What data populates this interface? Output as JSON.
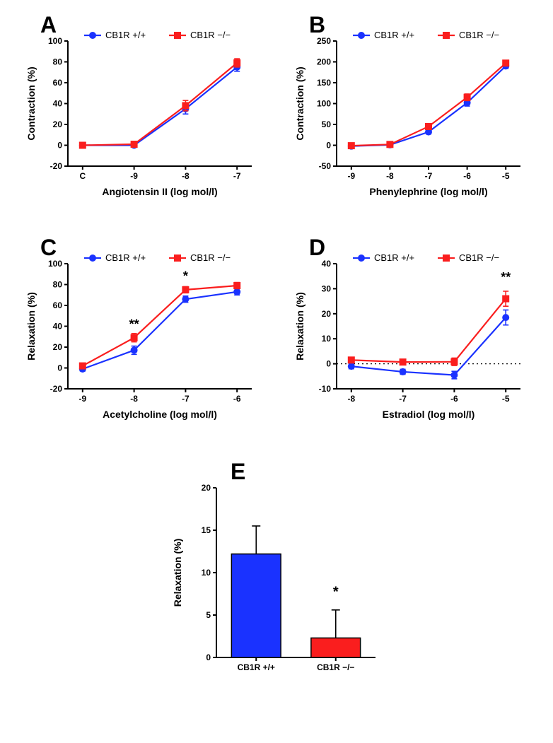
{
  "series_labels": {
    "wt": "CB1R +/+",
    "ko": "CB1R −/−"
  },
  "colors": {
    "wt": "#1a32ff",
    "ko": "#fa1e1e",
    "axis": "#000000",
    "text": "#000000",
    "bg": "#ffffff",
    "dashed": "#000000"
  },
  "marker": {
    "wt": "circle",
    "ko": "square",
    "size": 5,
    "line_width": 2.2,
    "err_cap": 4
  },
  "label_fontsize": 14,
  "tick_fontsize": 12,
  "panel_label_fontsize": 32,
  "legend_fontsize": 13,
  "panelA": {
    "label": "A",
    "xlabel": "Angiotensin II (log mol/l)",
    "ylabel": "Contraction  (%)",
    "x_categories": [
      "C",
      "-9",
      "-8",
      "-7"
    ],
    "ylim": [
      -20,
      100
    ],
    "ytick_step": 20,
    "series": {
      "wt": {
        "y": [
          0,
          0,
          35,
          75
        ],
        "err": [
          0,
          0,
          5,
          4
        ]
      },
      "ko": {
        "y": [
          0,
          1,
          38,
          79
        ],
        "err": [
          0,
          0,
          5,
          4
        ]
      }
    }
  },
  "panelB": {
    "label": "B",
    "xlabel": "Phenylephrine (log mol/l)",
    "ylabel": "Contraction  (%)",
    "x_categories": [
      "-9",
      "-8",
      "-7",
      "-6",
      "-5"
    ],
    "ylim": [
      -50,
      250
    ],
    "ytick_step": 50,
    "series": {
      "wt": {
        "y": [
          -2,
          1,
          32,
          102,
          190
        ],
        "err": [
          0,
          0,
          5,
          8,
          6
        ]
      },
      "ko": {
        "y": [
          -1,
          2,
          45,
          115,
          197
        ],
        "err": [
          0,
          0,
          5,
          8,
          6
        ]
      }
    }
  },
  "panelC": {
    "label": "C",
    "xlabel": "Acetylcholine (log mol/l)",
    "ylabel": "Relaxation  (%)",
    "x_categories": [
      "-9",
      "-8",
      "-7",
      "-6"
    ],
    "ylim": [
      -20,
      100
    ],
    "ytick_step": 20,
    "series": {
      "wt": {
        "y": [
          -1,
          17,
          66,
          73
        ],
        "err": [
          2,
          4,
          3,
          3
        ]
      },
      "ko": {
        "y": [
          2,
          29,
          75,
          79
        ],
        "err": [
          2,
          4,
          3,
          3
        ]
      }
    },
    "annotations": [
      {
        "x_index": 1,
        "y": 38,
        "text": "**"
      },
      {
        "x_index": 2,
        "y": 84,
        "text": "*"
      }
    ]
  },
  "panelD": {
    "label": "D",
    "xlabel": "Estradiol (log mol/l)",
    "ylabel": "Relaxation  (%)",
    "x_categories": [
      "-8",
      "-7",
      "-6",
      "-5"
    ],
    "ylim": [
      -10,
      40
    ],
    "ytick_step": 10,
    "zero_dashed": true,
    "series": {
      "wt": {
        "y": [
          -1,
          -3.2,
          -4.5,
          18.5
        ],
        "err": [
          1,
          1,
          1.5,
          3
        ]
      },
      "ko": {
        "y": [
          1.5,
          0.7,
          0.8,
          26
        ],
        "err": [
          1,
          1,
          1.5,
          3
        ]
      }
    },
    "annotations": [
      {
        "x_index": 3,
        "y": 33,
        "text": "**"
      }
    ]
  },
  "panelE": {
    "label": "E",
    "ylabel": "Relaxation  (%)",
    "categories": [
      "CB1R +/+",
      "CB1R −/−"
    ],
    "ylim": [
      0,
      20
    ],
    "ytick_step": 5,
    "bars": [
      {
        "name": "wt",
        "value": 12.2,
        "err": 3.3,
        "color": "#1a32ff"
      },
      {
        "name": "ko",
        "value": 2.3,
        "err": 3.3,
        "color": "#fa1e1e"
      }
    ],
    "annotations": [
      {
        "bar_index": 1,
        "y": 7.2,
        "text": "*"
      }
    ],
    "bar_width": 0.62
  }
}
